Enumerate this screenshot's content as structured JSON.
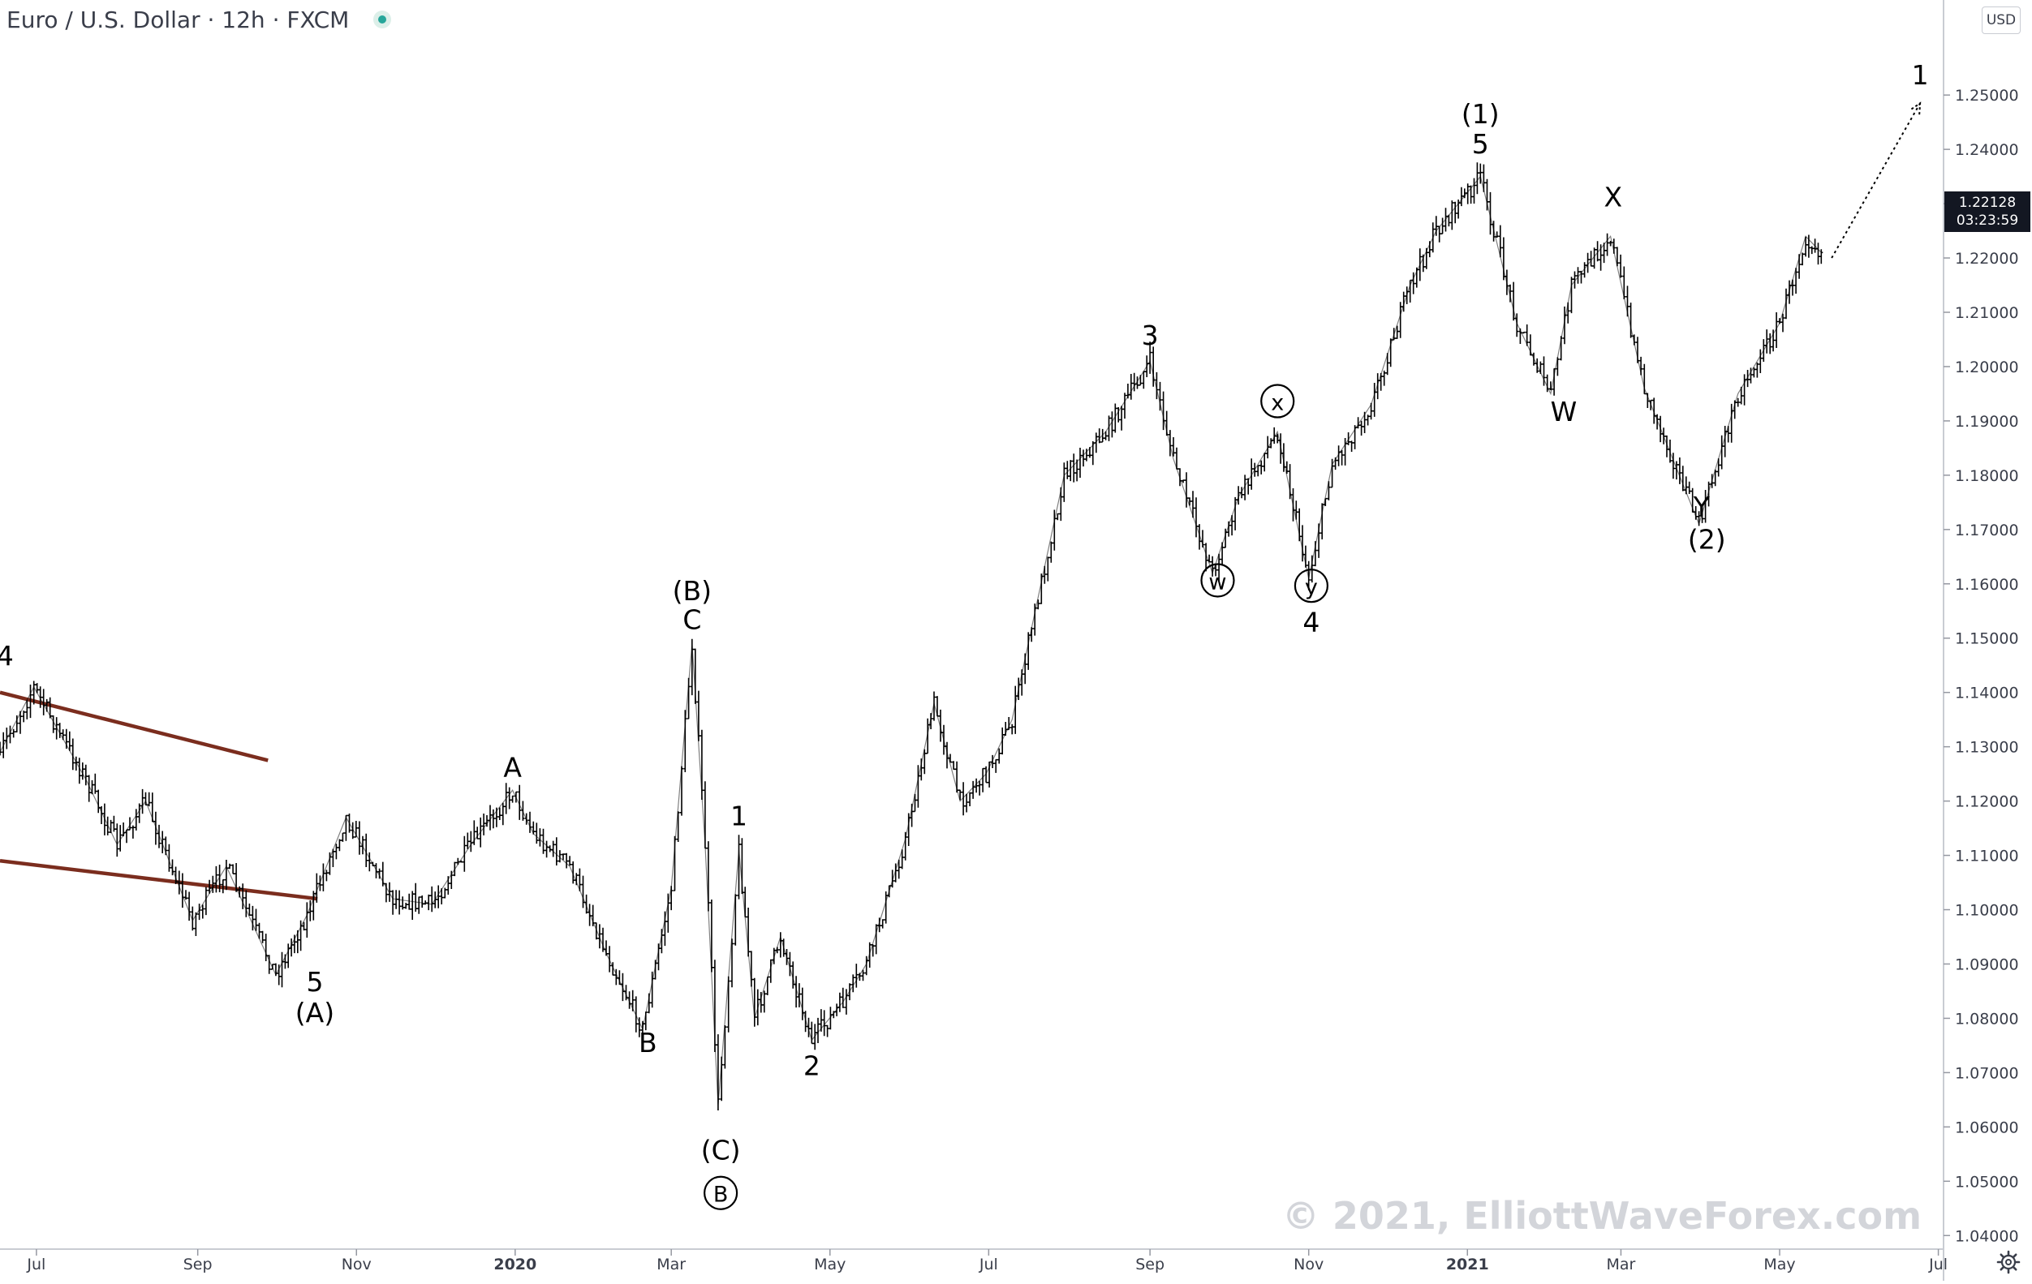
{
  "header": {
    "title": "Euro / U.S. Dollar · 12h · FXCM",
    "currency": "USD"
  },
  "price_tag": {
    "price": "1.22128",
    "countdown": "03:23:59"
  },
  "watermark": "© 2021, ElliottWaveForex.com",
  "colors": {
    "candles": "#000000",
    "trendlines": "#7b2d1e",
    "axis_text": "#3a3e4a",
    "watermark": "#d3d5da",
    "price_tag_bg": "#131722"
  },
  "icons": {
    "status": "status-dot-icon",
    "settings": "gear-icon"
  },
  "chart_data": {
    "type": "line",
    "title": "Euro / U.S. Dollar · 12h · FXCM",
    "xlabel": "",
    "ylabel": "",
    "ylim": [
      1.0375,
      1.2675
    ],
    "y_ticks": [
      "1.04000",
      "1.05000",
      "1.06000",
      "1.07000",
      "1.08000",
      "1.09000",
      "1.10000",
      "1.11000",
      "1.12000",
      "1.13000",
      "1.14000",
      "1.15000",
      "1.16000",
      "1.17000",
      "1.18000",
      "1.19000",
      "1.20000",
      "1.21000",
      "1.22000",
      "1.23000",
      "1.24000",
      "1.25000"
    ],
    "x_ticks": [
      "Jul",
      "Sep",
      "Nov",
      "2020",
      "Mar",
      "May",
      "Jul",
      "Sep",
      "Nov",
      "2021",
      "Mar",
      "May",
      "Jul"
    ],
    "x_range": [
      "2019-06-17",
      "2021-07-03"
    ],
    "grid": false,
    "series": [
      {
        "x": [
          "2019-06-17",
          "2019-06-30",
          "2019-07-20",
          "2019-08-01",
          "2019-08-12",
          "2019-08-30",
          "2019-09-12",
          "2019-10-01",
          "2019-10-13",
          "2019-10-28",
          "2019-11-15",
          "2019-11-30",
          "2019-12-15",
          "2019-12-31",
          "2020-01-08",
          "2020-01-22",
          "2020-02-05",
          "2020-02-19",
          "2020-03-01",
          "2020-03-09",
          "2020-03-14",
          "2020-03-19",
          "2020-03-27",
          "2020-04-02",
          "2020-04-12",
          "2020-04-24",
          "2020-05-06",
          "2020-05-15",
          "2020-05-30",
          "2020-06-10",
          "2020-06-20",
          "2020-06-30",
          "2020-07-10",
          "2020-07-30",
          "2020-08-15",
          "2020-09-01",
          "2020-09-10",
          "2020-09-25",
          "2020-10-05",
          "2020-10-20",
          "2020-11-01",
          "2020-11-10",
          "2020-11-25",
          "2020-12-10",
          "2020-12-20",
          "2021-01-06",
          "2021-01-20",
          "2021-02-02",
          "2021-02-10",
          "2021-02-25",
          "2021-03-10",
          "2021-03-31",
          "2021-04-15",
          "2021-05-01",
          "2021-05-11",
          "2021-05-17"
        ],
        "y": [
          1.129,
          1.141,
          1.124,
          1.112,
          1.12,
          1.098,
          1.108,
          1.088,
          1.099,
          1.117,
          1.102,
          1.101,
          1.112,
          1.122,
          1.114,
          1.108,
          1.092,
          1.078,
          1.104,
          1.149,
          1.112,
          1.064,
          1.111,
          1.08,
          1.095,
          1.076,
          1.083,
          1.09,
          1.113,
          1.138,
          1.12,
          1.125,
          1.135,
          1.18,
          1.188,
          1.201,
          1.183,
          1.162,
          1.176,
          1.188,
          1.161,
          1.182,
          1.193,
          1.215,
          1.225,
          1.235,
          1.208,
          1.195,
          1.215,
          1.224,
          1.196,
          1.171,
          1.195,
          1.208,
          1.224,
          1.221
        ]
      }
    ],
    "trendlines": [
      {
        "x": [
          "2019-06-17",
          "2019-09-28"
        ],
        "y": [
          1.14,
          1.1275
        ]
      },
      {
        "x": [
          "2019-06-17",
          "2019-10-17"
        ],
        "y": [
          1.109,
          1.102
        ]
      }
    ],
    "projection": {
      "x": [
        "2021-05-21",
        "2021-06-24"
      ],
      "y": [
        1.22,
        1.2485
      ]
    },
    "wave_labels": [
      {
        "text": "4",
        "x": "2019-06-19",
        "y": 1.145,
        "circled": false
      },
      {
        "text": "5",
        "x": "2019-10-16",
        "y": 1.085,
        "circled": false
      },
      {
        "text": "(A)",
        "x": "2019-10-16",
        "y": 1.0793,
        "circled": false
      },
      {
        "text": "A",
        "x": "2019-12-31",
        "y": 1.1245,
        "circled": false
      },
      {
        "text": "B",
        "x": "2020-02-21",
        "y": 1.0738,
        "circled": false
      },
      {
        "text": "(B)",
        "x": "2020-03-09",
        "y": 1.157,
        "circled": false
      },
      {
        "text": "C",
        "x": "2020-03-09",
        "y": 1.1517,
        "circled": false
      },
      {
        "text": "1",
        "x": "2020-03-27",
        "y": 1.1155,
        "circled": false
      },
      {
        "text": "(C)",
        "x": "2020-03-20",
        "y": 1.054,
        "circled": false
      },
      {
        "text": "B",
        "x": "2020-03-20",
        "y": 1.0462,
        "circled": true
      },
      {
        "text": "2",
        "x": "2020-04-24",
        "y": 1.0695,
        "circled": false
      },
      {
        "text": "3",
        "x": "2020-09-01",
        "y": 1.204,
        "circled": false
      },
      {
        "text": "w",
        "x": "2020-09-27",
        "y": 1.159,
        "circled": true
      },
      {
        "text": "x",
        "x": "2020-10-20",
        "y": 1.192,
        "circled": true
      },
      {
        "text": "y",
        "x": "2020-11-02",
        "y": 1.158,
        "circled": true
      },
      {
        "text": "4",
        "x": "2020-11-02",
        "y": 1.1512,
        "circled": false
      },
      {
        "text": "(1)",
        "x": "2021-01-06",
        "y": 1.2448,
        "circled": false
      },
      {
        "text": "5",
        "x": "2021-01-06",
        "y": 1.2393,
        "circled": false
      },
      {
        "text": "W",
        "x": "2021-02-07",
        "y": 1.19,
        "circled": false
      },
      {
        "text": "X",
        "x": "2021-02-26",
        "y": 1.2295,
        "circled": false
      },
      {
        "text": "Y",
        "x": "2021-04-01",
        "y": 1.1725,
        "circled": false
      },
      {
        "text": "(2)",
        "x": "2021-04-03",
        "y": 1.1665,
        "circled": false
      },
      {
        "text": "1",
        "x": "2021-06-24",
        "y": 1.252,
        "circled": false
      }
    ]
  }
}
